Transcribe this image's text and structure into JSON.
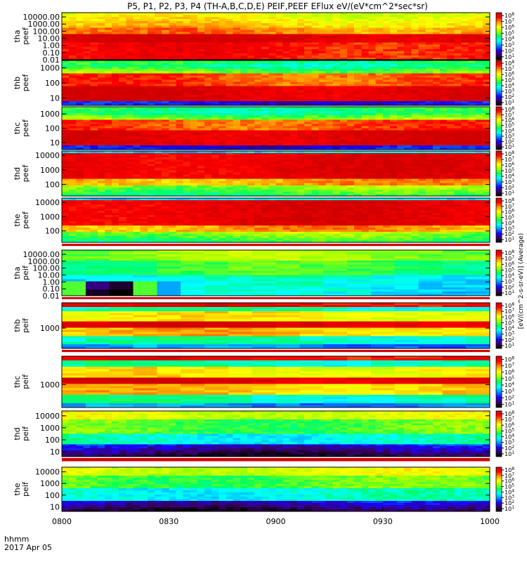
{
  "chart_data": {
    "type": "heatmap",
    "title": "P5, P1, P2, P3, P4 (TH-A,B,C,D,E) PEIF,PEEF EFlux eV/(eV*cm^2*sec*sr)",
    "footer": {
      "label": "hhmm",
      "date": "2017 Apr 05"
    },
    "x_ticks": [
      "0800",
      "0830",
      "0900",
      "0930",
      "1000"
    ],
    "x_range_hours": [
      8.0,
      10.0
    ],
    "colorbar_ticks": [
      "10^1",
      "10^2",
      "10^3",
      "10^4",
      "10^5",
      "10^6",
      "10^7",
      "10^8"
    ],
    "colorbar_unit": "[eV/(cm^2-s-sr-eV)] (Average)",
    "colormap": [
      "#000000",
      "#3a0060",
      "#1a00ff",
      "#0090ff",
      "#00ffff",
      "#00ff60",
      "#a0ff00",
      "#ffff00",
      "#ff9000",
      "#ff0000",
      "#d00000"
    ],
    "panels": [
      {
        "probe": "tha",
        "species": "peef",
        "yticks": [
          "10000.00",
          "1000.00",
          "100.00",
          "10.00",
          "1.00",
          "0.10",
          "0.01"
        ],
        "log_range": [
          -2,
          4.6
        ]
      },
      {
        "probe": "thb",
        "species": "peef",
        "yticks": [
          "1000",
          "100",
          "10"
        ],
        "log_range": [
          0.5,
          3.5
        ]
      },
      {
        "probe": "thc",
        "species": "peef",
        "yticks": [
          "1000",
          "100",
          "10"
        ],
        "log_range": [
          0.5,
          3.5
        ]
      },
      {
        "probe": "thd",
        "species": "peef",
        "yticks": [
          "10000",
          "1000",
          "100"
        ],
        "log_range": [
          1.2,
          4.3
        ]
      },
      {
        "probe": "the",
        "species": "peef",
        "yticks": [
          "10000",
          "1000",
          "100"
        ],
        "log_range": [
          1.2,
          4.3
        ]
      },
      {
        "probe": "tha",
        "species": "peif",
        "yticks": [
          "10000.00",
          "1000.00",
          "100.00",
          "10.00",
          "1.00",
          "0.10",
          "0.01"
        ],
        "log_range": [
          -2,
          4.6
        ]
      },
      {
        "probe": "thb",
        "species": "peif",
        "yticks": [
          "1000"
        ],
        "log_range": [
          2.2,
          4.0
        ]
      },
      {
        "probe": "thc",
        "species": "peif",
        "yticks": [
          "1000"
        ],
        "log_range": [
          2.2,
          4.0
        ]
      },
      {
        "probe": "thd",
        "species": "peif",
        "yticks": [
          "10000",
          "1000",
          "100",
          "10"
        ],
        "log_range": [
          0.6,
          4.4
        ]
      },
      {
        "probe": "the",
        "species": "peif",
        "yticks": [
          "10000",
          "1000",
          "100",
          "10"
        ],
        "log_range": [
          0.6,
          4.4
        ]
      }
    ]
  }
}
